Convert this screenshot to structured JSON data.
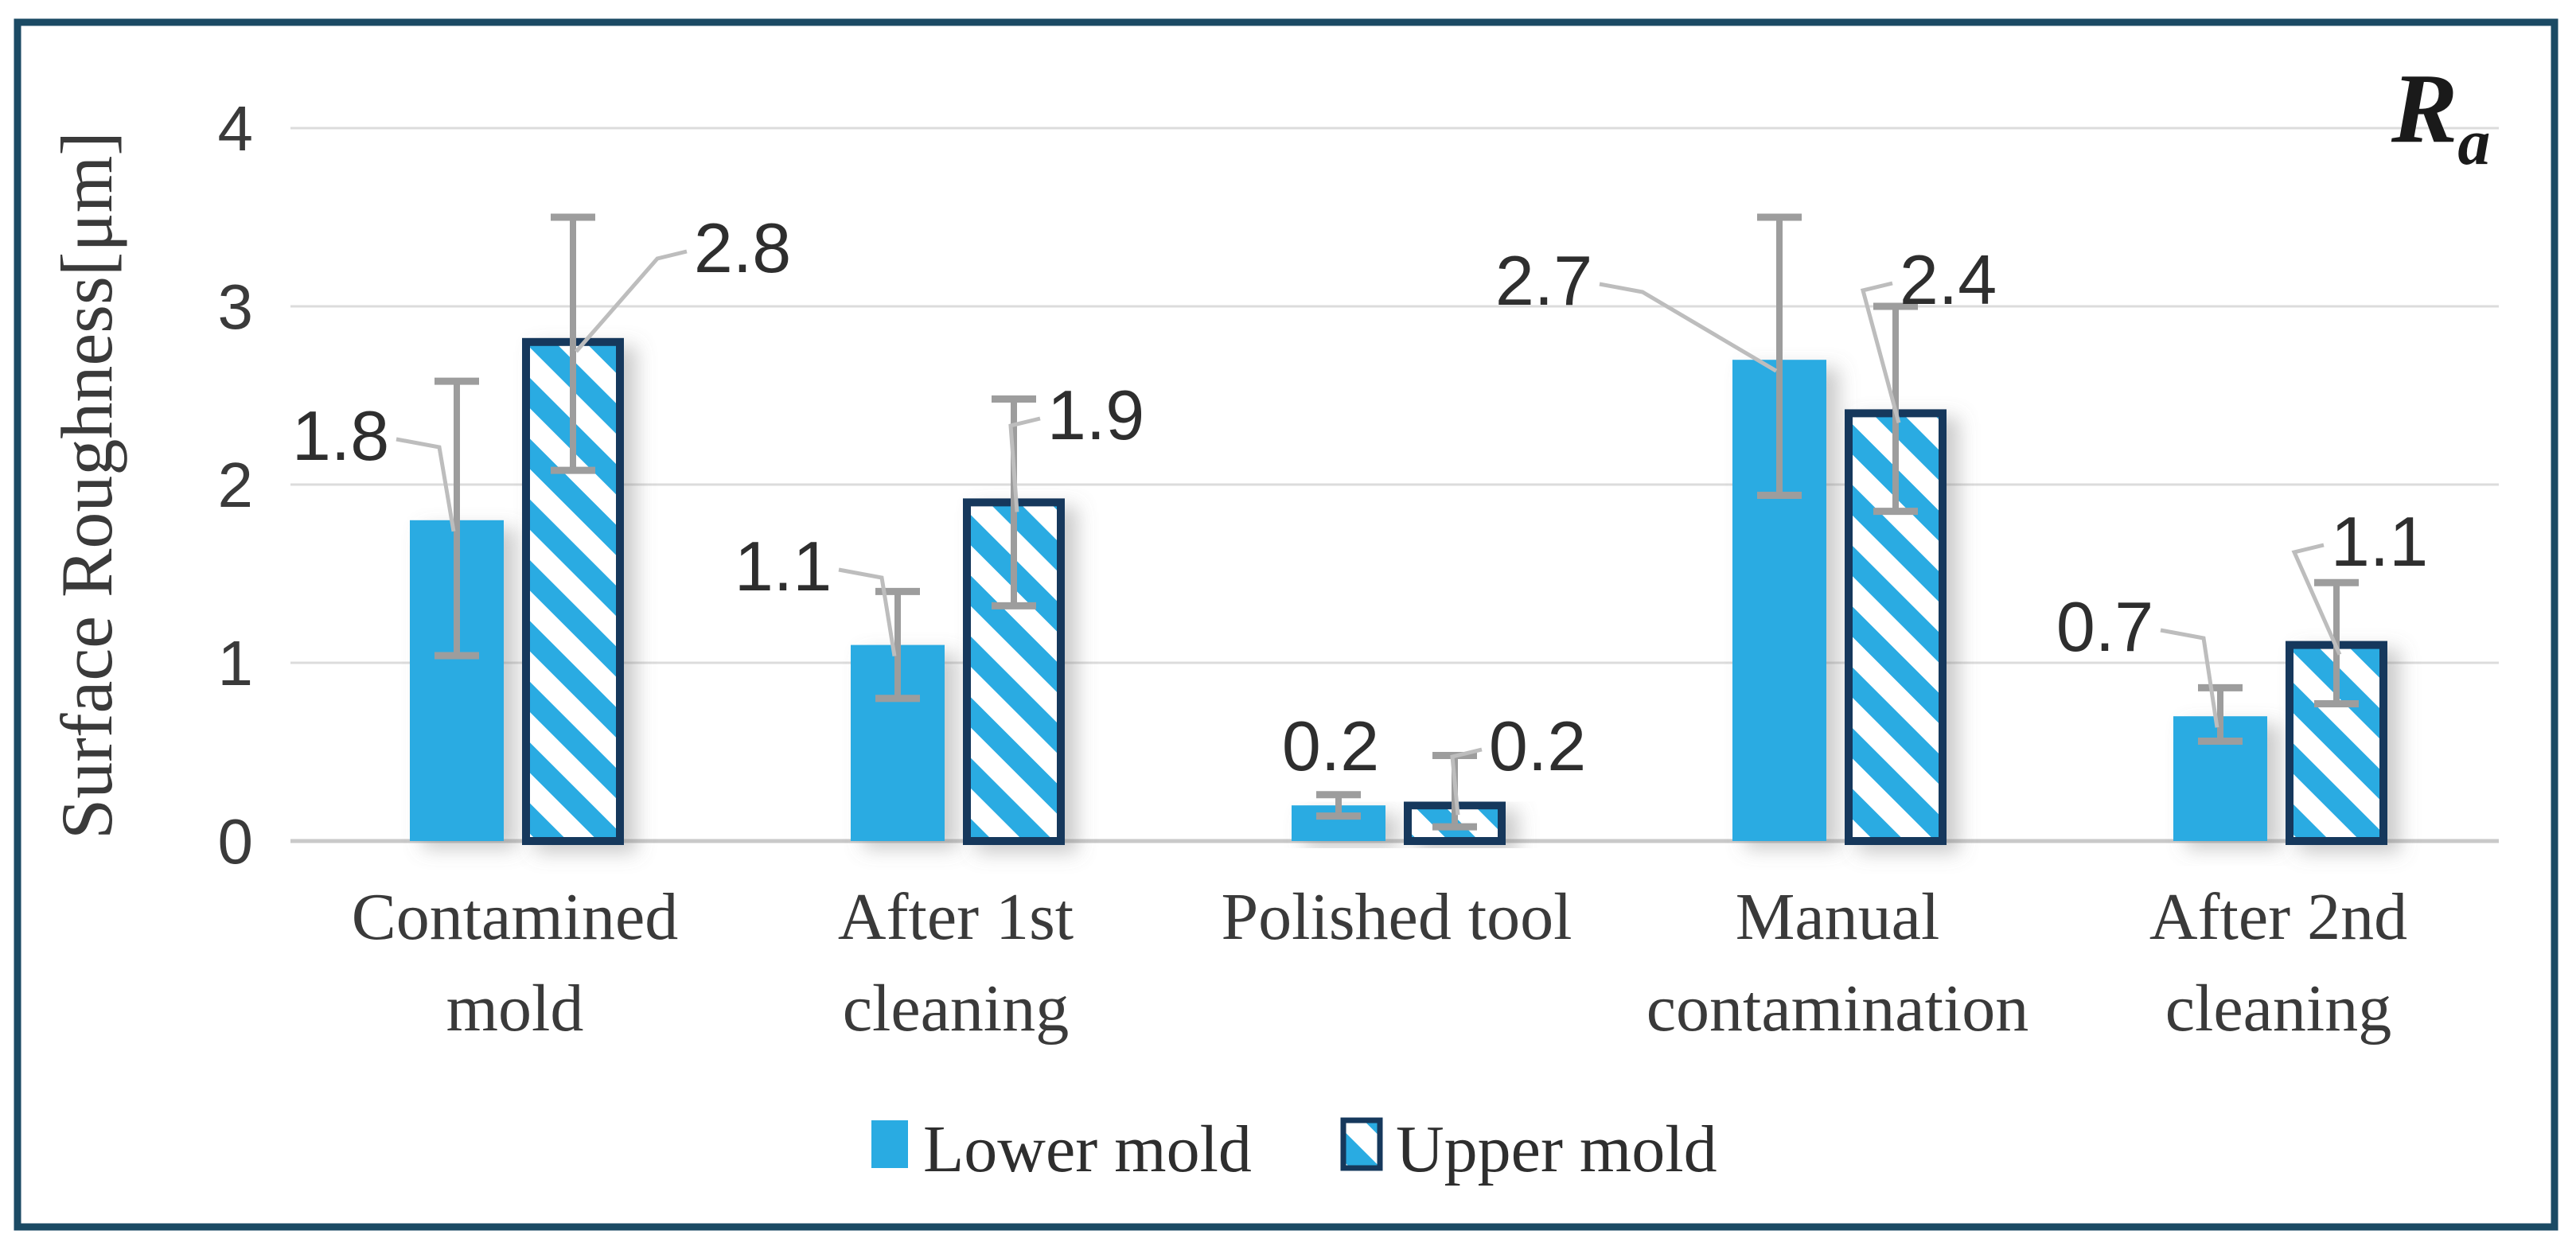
{
  "figure": {
    "corner_label": {
      "base": "R",
      "subscript": "a"
    }
  },
  "chart_data": {
    "type": "bar",
    "ylabel": "Surface Roughness[μm]",
    "ylim": [
      0,
      4
    ],
    "yticks": [
      "0",
      "1",
      "2",
      "3",
      "4"
    ],
    "grid": "horizontal-major-only",
    "legend_position": "bottom-center",
    "categories": [
      "Contamined mold",
      "After 1st cleaning",
      "Polished tool",
      "Manual contamination",
      "After 2nd cleaning"
    ],
    "category_lines": [
      [
        "Contamined",
        "mold"
      ],
      [
        "After 1st",
        "cleaning"
      ],
      [
        "Polished tool"
      ],
      [
        "Manual",
        "contamination"
      ],
      [
        "After 2nd",
        "cleaning"
      ]
    ],
    "series": [
      {
        "name": "Lower mold",
        "pattern": "solid",
        "values": [
          1.8,
          1.1,
          0.2,
          2.7,
          0.7
        ],
        "data_labels": [
          "1.8",
          "1.1",
          "0.2",
          "2.7",
          "0.7"
        ],
        "err_plus": [
          0.78,
          0.3,
          0.06,
          0.8,
          0.16
        ],
        "err_minus": [
          0.76,
          0.3,
          0.06,
          0.76,
          0.14
        ],
        "label_side": [
          "left",
          "left",
          "left",
          "left",
          "left"
        ],
        "label_pos": [
          [
            428,
            548
          ],
          [
            984,
            712
          ],
          [
            1672,
            938
          ],
          [
            1940,
            353
          ],
          [
            2645,
            788
          ]
        ],
        "leader": [
          true,
          true,
          false,
          true,
          true
        ]
      },
      {
        "name": "Upper mold",
        "pattern": "diagonal-hatch",
        "values": [
          2.8,
          1.9,
          0.2,
          2.4,
          1.1
        ],
        "data_labels": [
          "2.8",
          "1.9",
          "0.2",
          "2.4",
          "1.1"
        ],
        "err_plus": [
          0.7,
          0.58,
          0.28,
          0.6,
          0.35
        ],
        "err_minus": [
          0.72,
          0.58,
          0.12,
          0.55,
          0.33
        ],
        "label_side": [
          "right",
          "right",
          "right",
          "right",
          "right"
        ],
        "label_pos": [
          [
            933,
            312
          ],
          [
            1377,
            522
          ],
          [
            1932,
            938
          ],
          [
            2448,
            352
          ],
          [
            2990,
            681
          ]
        ],
        "leader": [
          true,
          true,
          true,
          true,
          true
        ]
      }
    ],
    "colors": {
      "bar_fill": "#29abe2",
      "bar_border": "#16385c",
      "error_bar": "#9d9d9d",
      "leader_line": "#bdbdbd",
      "grid_major": "#dcdcdc",
      "axis_line": "#c9c9c9",
      "text": "#3a3a3a",
      "label_text": "#2e2e2e",
      "frame": "#1b4a64"
    }
  }
}
